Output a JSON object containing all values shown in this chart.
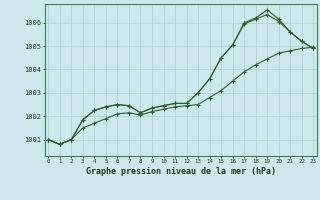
{
  "title": "Graphe pression niveau de la mer (hPa)",
  "background_color": "#cce8ec",
  "grid_color": "#aacfd4",
  "line_color": "#2d5e2d",
  "spine_color": "#4a7a4a",
  "tick_color": "#1a3d1a",
  "label_color": "#1a3d1a",
  "yticks": [
    1001,
    1002,
    1003,
    1004,
    1005,
    1006
  ],
  "xticks": [
    0,
    1,
    2,
    3,
    4,
    5,
    6,
    7,
    8,
    9,
    10,
    11,
    12,
    13,
    14,
    15,
    16,
    17,
    18,
    19,
    20,
    21,
    22,
    23
  ],
  "ylim": [
    1000.3,
    1006.8
  ],
  "xlim": [
    -0.3,
    23.3
  ],
  "line1": [
    1001.0,
    1000.8,
    1001.0,
    1001.5,
    1001.7,
    1001.9,
    1002.1,
    1002.15,
    1002.05,
    1002.2,
    1002.3,
    1002.4,
    1002.45,
    1002.5,
    1002.8,
    1003.1,
    1003.5,
    1003.9,
    1004.2,
    1004.45,
    1004.7,
    1004.8,
    1004.9,
    1004.95
  ],
  "line2": [
    1001.0,
    1000.8,
    1001.0,
    1001.85,
    1002.25,
    1002.4,
    1002.5,
    1002.45,
    1002.15,
    1002.35,
    1002.45,
    1002.55,
    1002.55,
    1003.0,
    1003.6,
    1004.5,
    1005.05,
    1005.95,
    1006.15,
    1006.35,
    1006.05,
    1005.6,
    1005.2,
    1004.9
  ],
  "line3": [
    1001.0,
    1000.8,
    1001.0,
    1001.85,
    1002.25,
    1002.4,
    1002.5,
    1002.45,
    1002.15,
    1002.35,
    1002.45,
    1002.55,
    1002.55,
    1003.0,
    1003.6,
    1004.5,
    1005.05,
    1006.0,
    1006.2,
    1006.55,
    1006.15,
    1005.6,
    1005.2,
    1004.9
  ]
}
